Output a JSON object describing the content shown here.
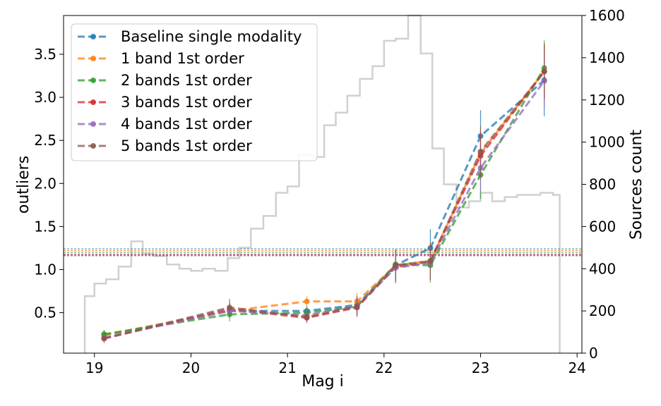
{
  "chart_data": {
    "type": "line",
    "xlabel": "Mag i",
    "ylabel_left": "outliers",
    "ylabel_right": "Sources count",
    "xlim": [
      18.68,
      24.05
    ],
    "ylim_left": [
      0.03,
      3.95
    ],
    "ylim_right": [
      0,
      1600
    ],
    "x_ticks": [
      19,
      20,
      21,
      22,
      23,
      24
    ],
    "y_ticks_left": [
      0.5,
      1.0,
      1.5,
      2.0,
      2.5,
      3.0,
      3.5
    ],
    "y_ticks_right": [
      0,
      200,
      400,
      600,
      800,
      1000,
      1200,
      1400,
      1600
    ],
    "y_tick_labels_left": [
      "0.5",
      "1.0",
      "1.5",
      "2.0",
      "2.5",
      "3.0",
      "3.5"
    ],
    "legend_position": "top-left",
    "x": [
      19.1,
      20.4,
      21.2,
      21.72,
      22.12,
      22.48,
      23.0,
      23.66
    ],
    "series": [
      {
        "name": "Baseline single modality",
        "color": "#1f77b4",
        "values": [
          0.24,
          0.52,
          0.52,
          0.59,
          1.05,
          1.25,
          2.55,
          3.2
        ],
        "err": [
          0.05,
          0.08,
          0.06,
          0.1,
          0.18,
          0.22,
          0.3,
          0.42
        ]
      },
      {
        "name": "1 band  1st order",
        "color": "#ff7f0e",
        "values": [
          0.24,
          0.52,
          0.63,
          0.63,
          1.05,
          1.1,
          2.35,
          3.3
        ],
        "err": [
          0.05,
          0.08,
          0.06,
          0.1,
          0.18,
          0.2,
          0.28,
          0.3
        ]
      },
      {
        "name": "2 bands 1st order",
        "color": "#2ca02c",
        "values": [
          0.25,
          0.48,
          0.5,
          0.57,
          1.06,
          1.05,
          2.1,
          3.34
        ],
        "err": [
          0.05,
          0.08,
          0.06,
          0.1,
          0.18,
          0.2,
          0.28,
          0.32
        ]
      },
      {
        "name": "3 bands 1st order",
        "color": "#d62728",
        "values": [
          0.2,
          0.54,
          0.44,
          0.56,
          1.03,
          1.09,
          2.32,
          3.3
        ],
        "err": [
          0.05,
          0.08,
          0.06,
          0.1,
          0.18,
          0.2,
          0.28,
          0.32
        ]
      },
      {
        "name": "4 bands 1st order",
        "color": "#9467bd",
        "values": [
          0.21,
          0.52,
          0.47,
          0.58,
          1.02,
          1.08,
          2.18,
          3.19
        ],
        "err": [
          0.05,
          0.08,
          0.06,
          0.1,
          0.18,
          0.2,
          0.28,
          0.3
        ]
      },
      {
        "name": "5 bands 1st order",
        "color": "#8c564b",
        "values": [
          0.2,
          0.56,
          0.45,
          0.57,
          1.05,
          1.1,
          2.37,
          3.3
        ],
        "err": [
          0.05,
          0.1,
          0.06,
          0.12,
          0.18,
          0.22,
          0.3,
          0.32
        ]
      }
    ],
    "reference_lines": [
      {
        "color": "#1f77b4",
        "value": 1.24
      },
      {
        "color": "#ff7f0e",
        "value": 1.22
      },
      {
        "color": "#2ca02c",
        "value": 1.2
      },
      {
        "color": "#9467bd",
        "value": 1.18
      },
      {
        "color": "#d62728",
        "value": 1.17
      },
      {
        "color": "#8c564b",
        "value": 1.16
      }
    ],
    "histogram": {
      "color": "#d0d0d0",
      "edges": [
        18.9,
        19.0,
        19.12,
        19.25,
        19.38,
        19.5,
        19.62,
        19.75,
        19.88,
        20.0,
        20.12,
        20.25,
        20.38,
        20.5,
        20.62,
        20.75,
        20.88,
        21.0,
        21.12,
        21.25,
        21.38,
        21.5,
        21.62,
        21.75,
        21.88,
        22.0,
        22.12,
        22.25,
        22.38,
        22.5,
        22.62,
        22.75,
        22.88,
        23.0,
        23.12,
        23.25,
        23.38,
        23.5,
        23.62,
        23.75,
        23.82
      ],
      "counts": [
        270,
        330,
        350,
        410,
        530,
        470,
        460,
        420,
        400,
        390,
        400,
        390,
        450,
        500,
        590,
        650,
        760,
        790,
        940,
        930,
        1080,
        1140,
        1220,
        1300,
        1360,
        1480,
        1490,
        1600,
        1420,
        970,
        800,
        690,
        720,
        760,
        720,
        740,
        750,
        750,
        760,
        750
      ]
    }
  }
}
